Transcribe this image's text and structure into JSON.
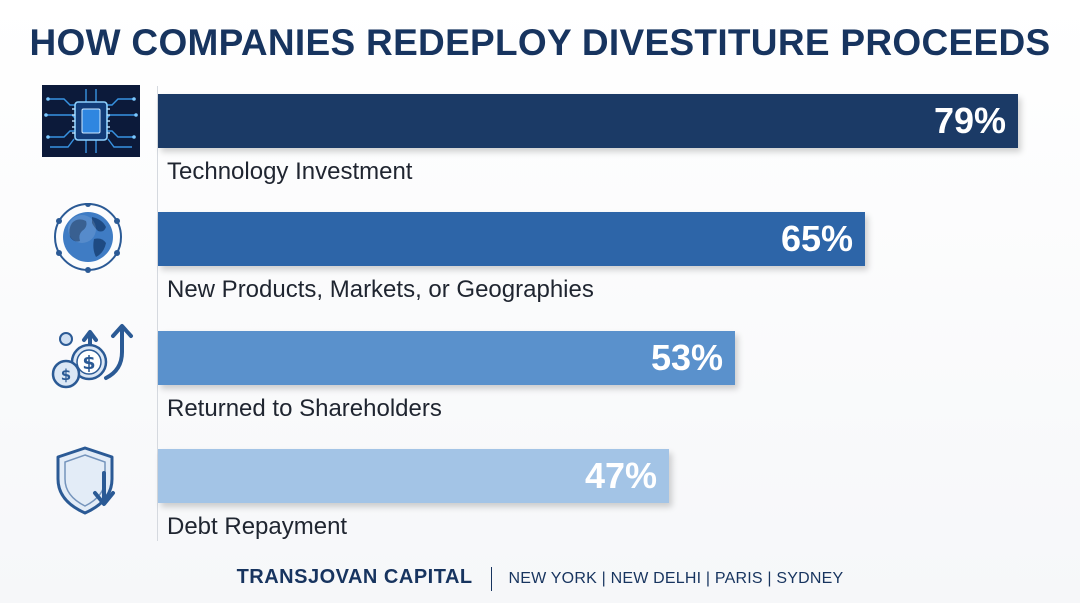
{
  "chart_data": {
    "type": "bar",
    "orientation": "horizontal",
    "title": "HOW COMPANIES REDEPLOY DIVESTITURE PROCEEDS",
    "categories": [
      "Technology Investment",
      "New Products, Markets, or Geographies",
      "Returned to Shareholders",
      "Debt Repayment"
    ],
    "values": [
      79,
      65,
      53,
      47
    ],
    "value_labels": [
      "79%",
      "65%",
      "53%",
      "47%"
    ],
    "unit": "%",
    "xlim": [
      0,
      100
    ],
    "grid": false,
    "legend": "none",
    "bar_colors": [
      "#1b3a66",
      "#2d65a8",
      "#5a91cc",
      "#a3c4e6"
    ],
    "icons": [
      "microchip-icon",
      "globe-network-icon",
      "coins-growth-icon",
      "shield-down-arrow-icon"
    ]
  },
  "footer": {
    "brand": "TRANSJOVAN CAPITAL",
    "cities": "NEW YORK | NEW DELHI | PARIS | SYDNEY"
  },
  "colors": {
    "title": "#17345f",
    "icon_stroke": "#2b5a95",
    "chip_background": "#0c1a3a"
  }
}
